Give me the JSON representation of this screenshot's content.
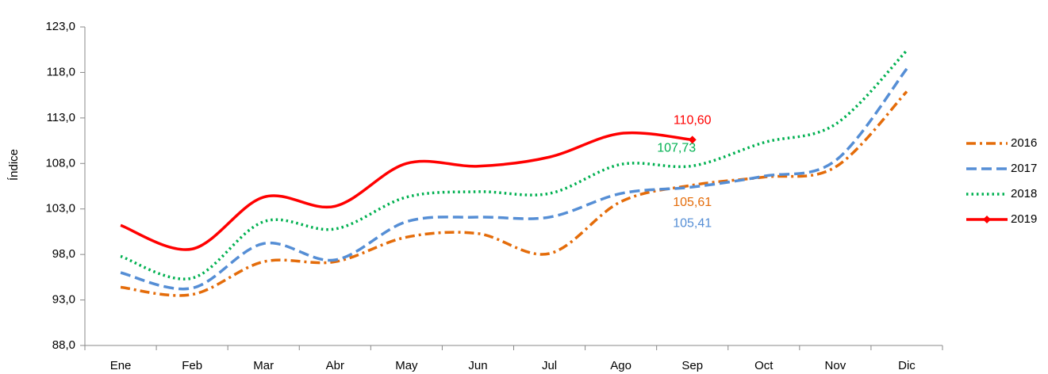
{
  "chart_data": {
    "type": "line",
    "y_label": "Índice",
    "categories": [
      "Ene",
      "Feb",
      "Mar",
      "Abr",
      "May",
      "Jun",
      "Jul",
      "Ago",
      "Sep",
      "Oct",
      "Nov",
      "Dic"
    ],
    "series": [
      {
        "name": "2016",
        "color": "#e46c0a",
        "style": "dashdot",
        "values": [
          94.4,
          93.6,
          97.2,
          97.2,
          99.9,
          100.3,
          98.1,
          103.8,
          105.61,
          106.5,
          107.6,
          115.9
        ],
        "value_labels": [
          null,
          null,
          null,
          null,
          null,
          null,
          null,
          null,
          "105,61",
          null,
          null,
          null
        ]
      },
      {
        "name": "2017",
        "color": "#558ed5",
        "style": "dashed",
        "values": [
          96.0,
          94.3,
          99.2,
          97.4,
          101.6,
          102.1,
          102.1,
          104.7,
          105.41,
          106.6,
          108.3,
          118.4
        ],
        "value_labels": [
          null,
          null,
          null,
          null,
          null,
          null,
          null,
          null,
          "105,41",
          null,
          null,
          null
        ]
      },
      {
        "name": "2018",
        "color": "#00b050",
        "style": "dotted",
        "values": [
          97.8,
          95.4,
          101.6,
          100.8,
          104.3,
          104.9,
          104.7,
          107.9,
          107.73,
          110.3,
          112.3,
          120.4
        ],
        "value_labels": [
          null,
          null,
          null,
          null,
          null,
          null,
          null,
          null,
          "107,73",
          null,
          null,
          null
        ]
      },
      {
        "name": "2019",
        "color": "#ff0000",
        "style": "solid",
        "marker": "diamond",
        "values": [
          101.2,
          98.6,
          104.3,
          103.3,
          108.0,
          107.7,
          108.7,
          111.3,
          110.6,
          null,
          null,
          null
        ],
        "value_labels": [
          null,
          null,
          null,
          null,
          null,
          null,
          null,
          null,
          "110,60",
          null,
          null,
          null
        ]
      }
    ],
    "ylim": [
      88,
      123
    ],
    "yticks": [
      {
        "value": 88,
        "label": "88,0"
      },
      {
        "value": 93,
        "label": "93,0"
      },
      {
        "value": 98,
        "label": "98,0"
      },
      {
        "value": 103,
        "label": "103,0"
      },
      {
        "value": 108,
        "label": "108,0"
      },
      {
        "value": 113,
        "label": "113,0"
      },
      {
        "value": 118,
        "label": "118,0"
      },
      {
        "value": 123,
        "label": "123,0"
      }
    ],
    "grid": false,
    "legend": "right"
  }
}
